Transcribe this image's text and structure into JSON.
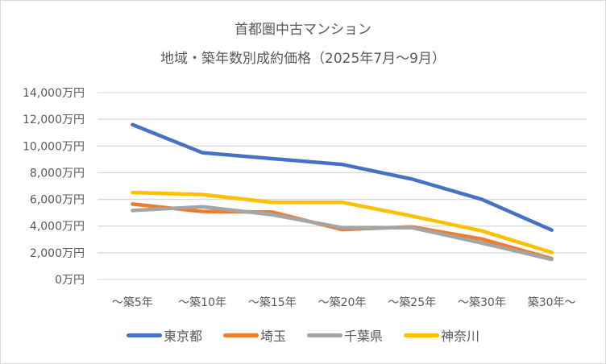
{
  "chart_data": {
    "type": "line",
    "title": "首都圏中古マンション",
    "subtitle": "地域・築年数別成約価格（2025年7月～9月）",
    "categories": [
      "～築5年",
      "～築10年",
      "～築15年",
      "～築20年",
      "～築25年",
      "～築30年",
      "築30年～"
    ],
    "ylim": [
      0,
      14000
    ],
    "yticks": [
      0,
      2000,
      4000,
      6000,
      8000,
      10000,
      12000,
      14000
    ],
    "ytick_labels": [
      "0万円",
      "2,000万円",
      "4,000万円",
      "6,000万円",
      "8,000万円",
      "10,000万円",
      "12,000万円",
      "14,000万円"
    ],
    "grid": true,
    "legend": "bottom",
    "series": [
      {
        "name": "東京都",
        "color": "#4472c4",
        "values": [
          11600,
          9500,
          9050,
          8620,
          7520,
          6000,
          3700
        ]
      },
      {
        "name": "埼玉",
        "color": "#ed7d31",
        "values": [
          5650,
          5090,
          5050,
          3740,
          3940,
          3030,
          1560
        ]
      },
      {
        "name": "千葉県",
        "color": "#a5a5a5",
        "values": [
          5170,
          5450,
          4850,
          3880,
          3880,
          2730,
          1500
        ]
      },
      {
        "name": "神奈川",
        "color": "#ffc000",
        "values": [
          6520,
          6360,
          5780,
          5780,
          4750,
          3640,
          2020
        ]
      }
    ]
  }
}
